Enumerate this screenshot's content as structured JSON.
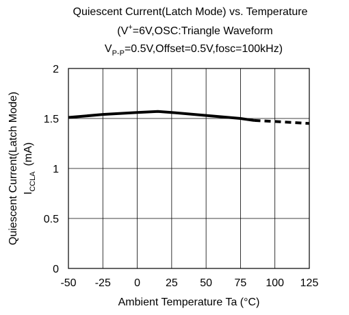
{
  "chart_data": {
    "type": "line",
    "title": [
      [
        "Quiescent Current(Latch Mode) vs. Temperature"
      ],
      [
        "(V",
        "+",
        "=6V,OSC:Triangle Waveform"
      ],
      [
        "V",
        "P-P",
        "=0.5V,Offset=0.5V,fosc=100kHz)"
      ]
    ],
    "ylabel": [
      "Quiescent Current(Latch Mode)",
      "I",
      "CCLA",
      "(mA)"
    ],
    "xlabel": "Ambient Temperature  Ta  (°C)",
    "x": [
      -50,
      -25,
      0,
      15,
      25,
      50,
      75,
      85,
      100,
      125
    ],
    "series": [
      {
        "color": "#000000",
        "style": "solid",
        "values": [
          1.51,
          1.54,
          1.56,
          1.57,
          1.56,
          1.53,
          1.5,
          1.48,
          null,
          null
        ]
      },
      {
        "color": "#000000",
        "style": "dashed",
        "values": [
          null,
          null,
          null,
          null,
          null,
          null,
          null,
          1.48,
          1.47,
          1.45
        ]
      }
    ],
    "xlim": [
      -50,
      125
    ],
    "xticks": [
      -50,
      -25,
      0,
      25,
      50,
      75,
      100,
      125
    ],
    "ylim": [
      0,
      2
    ],
    "yticks": [
      0,
      0.5,
      1,
      1.5,
      2
    ],
    "grid": true
  }
}
